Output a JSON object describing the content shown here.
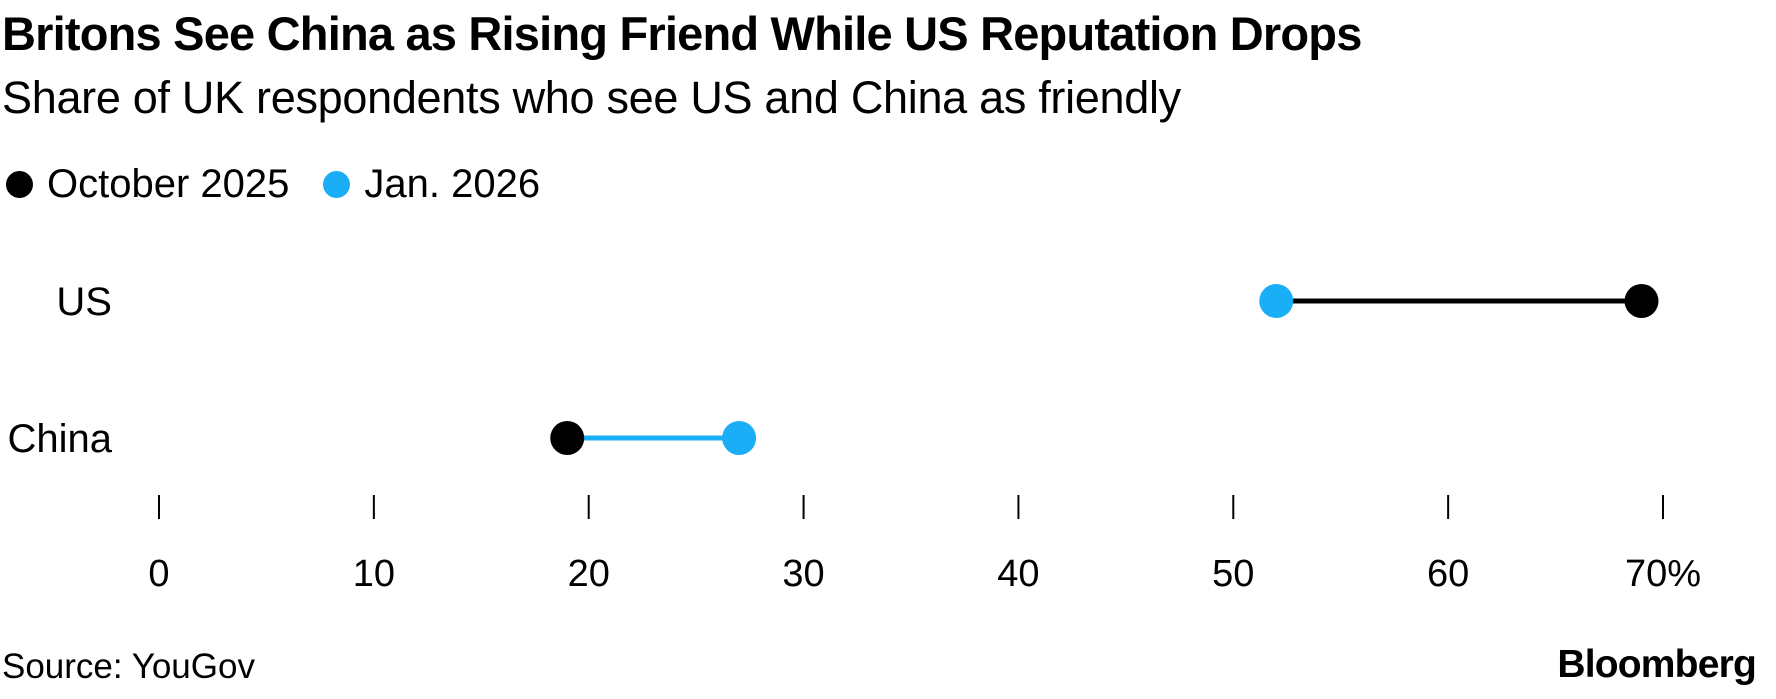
{
  "header": {
    "title": "Britons See China as Rising Friend While US Reputation Drops",
    "subtitle": "Share of UK respondents who see US and China as friendly"
  },
  "legend": {
    "items": [
      {
        "label": "October 2025",
        "color": "#000000"
      },
      {
        "label": "Jan. 2026",
        "color": "#1aaef6"
      }
    ]
  },
  "chart_data": {
    "type": "dumbbell",
    "title": "Britons See China as Rising Friend While US Reputation Drops",
    "subtitle": "Share of UK respondents who see US and China as friendly",
    "xlabel": "",
    "ylabel": "",
    "unit": "%",
    "xlim": [
      0,
      70
    ],
    "ticks": [
      0,
      10,
      20,
      30,
      40,
      50,
      60,
      70
    ],
    "tick_labels": [
      "0",
      "10",
      "20",
      "30",
      "40",
      "50",
      "60",
      "70%"
    ],
    "grid": false,
    "legend_position": "top-left",
    "series": [
      {
        "name": "October 2025",
        "color": "#000000"
      },
      {
        "name": "Jan. 2026",
        "color": "#1aaef6"
      }
    ],
    "categories": [
      "US",
      "China"
    ],
    "rows": [
      {
        "category": "US",
        "oct_2025": 69,
        "jan_2026": 52
      },
      {
        "category": "China",
        "oct_2025": 19,
        "jan_2026": 27
      }
    ]
  },
  "footer": {
    "source": "Source: YouGov",
    "brand": "Bloomberg"
  }
}
